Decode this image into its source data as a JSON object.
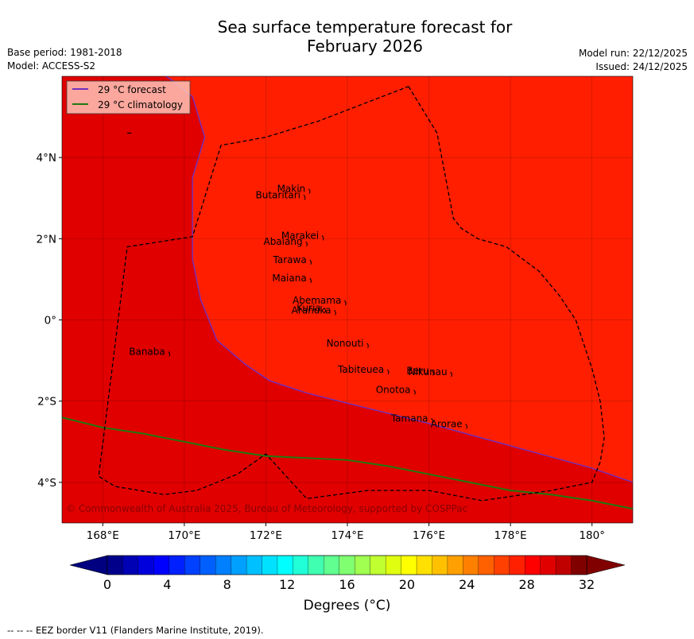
{
  "title_line1": "Sea surface temperature forecast for",
  "title_line2": "February 2026",
  "left_meta": {
    "base_period": "Base period: 1981-2018",
    "model": "Model: ACCESS-S2"
  },
  "right_meta": {
    "model_run": "Model run: 22/12/2025",
    "issued": "Issued: 24/12/2025"
  },
  "legend": {
    "forecast": "29 °C  forecast",
    "climatology": "29 °C  climatology",
    "forecast_color": "#7030c0",
    "climatology_color": "#207a10"
  },
  "map": {
    "lon_range": [
      167,
      181
    ],
    "lat_range": [
      -5,
      6
    ],
    "lon_ticks": [
      {
        "v": 168,
        "label": "168°E"
      },
      {
        "v": 170,
        "label": "170°E"
      },
      {
        "v": 172,
        "label": "172°E"
      },
      {
        "v": 174,
        "label": "174°E"
      },
      {
        "v": 176,
        "label": "176°E"
      },
      {
        "v": 178,
        "label": "178°E"
      },
      {
        "v": 180,
        "label": "180°"
      }
    ],
    "lat_ticks": [
      {
        "v": 4,
        "label": "4°N"
      },
      {
        "v": 2,
        "label": "2°N"
      },
      {
        "v": 0,
        "label": "0°"
      },
      {
        "v": -2,
        "label": "2°S"
      },
      {
        "v": -4,
        "label": "4°S"
      }
    ],
    "warm_color": "#ff1e00",
    "cooler_color": "#e00000",
    "islands": [
      {
        "name": "Makin",
        "lon": 172.97,
        "lat": 3.15
      },
      {
        "name": "Butaritari",
        "lon": 172.85,
        "lat": 3.0
      },
      {
        "name": "Marakei",
        "lon": 173.3,
        "lat": 2.0
      },
      {
        "name": "Abaiang",
        "lon": 172.9,
        "lat": 1.85
      },
      {
        "name": "Tarawa",
        "lon": 173.0,
        "lat": 1.4
      },
      {
        "name": "Maiana",
        "lon": 173.0,
        "lat": 0.95
      },
      {
        "name": "Abemama",
        "lon": 173.85,
        "lat": 0.4
      },
      {
        "name": "Kuria",
        "lon": 173.35,
        "lat": 0.22
      },
      {
        "name": "Aranuka",
        "lon": 173.6,
        "lat": 0.16
      },
      {
        "name": "Nonouti",
        "lon": 174.4,
        "lat": -0.65
      },
      {
        "name": "Banaba",
        "lon": 169.53,
        "lat": -0.86
      },
      {
        "name": "Tabiteuea",
        "lon": 174.9,
        "lat": -1.3
      },
      {
        "name": "Beru",
        "lon": 176.0,
        "lat": -1.33
      },
      {
        "name": "Nikunau",
        "lon": 176.45,
        "lat": -1.36
      },
      {
        "name": "Onotoa",
        "lon": 175.55,
        "lat": -1.8
      },
      {
        "name": "Tamana",
        "lon": 175.98,
        "lat": -2.5
      },
      {
        "name": "Arorae",
        "lon": 176.82,
        "lat": -2.64
      }
    ],
    "forecast_line": [
      [
        169.4,
        6.1
      ],
      [
        169.7,
        5.9
      ],
      [
        170.2,
        5.5
      ],
      [
        170.5,
        4.5
      ],
      [
        170.2,
        3.5
      ],
      [
        170.2,
        1.5
      ],
      [
        170.4,
        0.5
      ],
      [
        170.8,
        -0.5
      ],
      [
        171.5,
        -1.1
      ],
      [
        172.1,
        -1.5
      ],
      [
        173.0,
        -1.8
      ],
      [
        174.0,
        -2.05
      ],
      [
        176.0,
        -2.55
      ],
      [
        178.0,
        -3.1
      ],
      [
        180.0,
        -3.65
      ],
      [
        181.0,
        -4.0
      ]
    ],
    "climatology_line": [
      [
        167,
        -2.4
      ],
      [
        168,
        -2.65
      ],
      [
        169,
        -2.8
      ],
      [
        170,
        -3.0
      ],
      [
        171,
        -3.2
      ],
      [
        172,
        -3.35
      ],
      [
        173,
        -3.4
      ],
      [
        174,
        -3.45
      ],
      [
        175,
        -3.6
      ],
      [
        176,
        -3.8
      ],
      [
        177,
        -4.0
      ],
      [
        178,
        -4.2
      ],
      [
        179,
        -4.3
      ],
      [
        180,
        -4.45
      ],
      [
        181,
        -4.65
      ]
    ],
    "eez_line": [
      [
        175.5,
        5.75
      ],
      [
        176.2,
        4.6
      ],
      [
        176.6,
        2.5
      ],
      [
        176.8,
        2.25
      ],
      [
        177.2,
        2.0
      ],
      [
        177.9,
        1.8
      ],
      [
        178.7,
        1.2
      ],
      [
        179.2,
        0.6
      ],
      [
        179.6,
        0.0
      ],
      [
        179.8,
        -0.6
      ],
      [
        180.0,
        -1.2
      ],
      [
        180.2,
        -2.0
      ],
      [
        180.3,
        -2.9
      ],
      [
        180.2,
        -3.5
      ],
      [
        180.0,
        -4.0
      ],
      [
        179.0,
        -4.2
      ],
      [
        177.3,
        -4.45
      ],
      [
        176.0,
        -4.2
      ],
      [
        174.5,
        -4.2
      ],
      [
        173.0,
        -4.4
      ],
      [
        172.0,
        -3.3
      ],
      [
        171.3,
        -3.8
      ],
      [
        170.3,
        -4.2
      ],
      [
        169.5,
        -4.3
      ],
      [
        168.3,
        -4.1
      ],
      [
        167.9,
        -3.85
      ],
      [
        168.6,
        1.8
      ],
      [
        170.2,
        2.05
      ],
      [
        170.9,
        4.3
      ],
      [
        172.0,
        4.5
      ],
      [
        173.3,
        4.9
      ],
      [
        175.5,
        5.75
      ]
    ],
    "eez_small": [
      [
        168.6,
        4.6
      ],
      [
        168.7,
        4.6
      ]
    ]
  },
  "copyright": "© Commonwealth of Australia 2025, Bureau of Meteorology, supported by COSPPac",
  "colorbar": {
    "ticks": [
      0,
      4,
      8,
      12,
      16,
      20,
      24,
      28,
      32
    ],
    "colors": [
      "#00008b",
      "#0000b4",
      "#0000dc",
      "#0000ff",
      "#0020ff",
      "#0040ff",
      "#0060ff",
      "#0080ff",
      "#00a0ff",
      "#00c0ff",
      "#00e0ff",
      "#00ffff",
      "#20ffd8",
      "#40ffb0",
      "#60ff90",
      "#80ff70",
      "#a0ff50",
      "#c0ff30",
      "#e0ff10",
      "#ffff00",
      "#ffe000",
      "#ffc000",
      "#ffa000",
      "#ff8000",
      "#ff6000",
      "#ff4000",
      "#ff2000",
      "#ff0000",
      "#e00000",
      "#c00000",
      "#800000"
    ],
    "under_color": "#000080",
    "over_color": "#800000",
    "label": "Degrees (°C)"
  },
  "footer": "--  --  -- EEZ border V11 (Flanders Marine Institute, 2019)."
}
